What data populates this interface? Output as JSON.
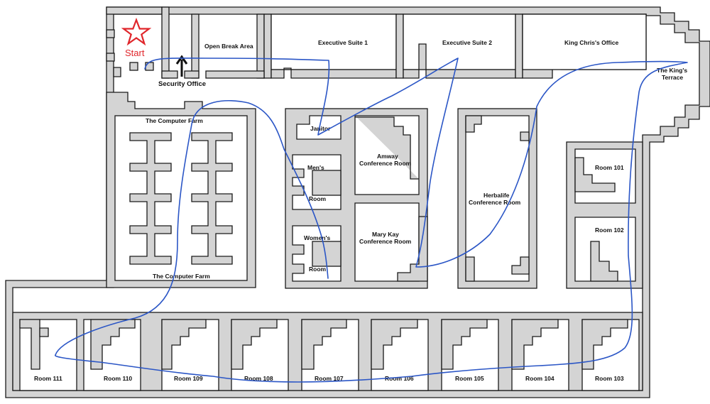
{
  "map": {
    "start_label": "Start",
    "security_office": "Security Office",
    "open_break_area": "Open Break Area",
    "executive_suite_1": "Executive Suite 1",
    "executive_suite_2": "Executive Suite 2",
    "king_chris_office": "King Chris's Office",
    "kings_terrace_line1": "The King's",
    "kings_terrace_line2": "Terrace",
    "computer_farm_top": "The Computer Farm",
    "computer_farm_bottom": "The Computer Farm",
    "janitor": "Janitor",
    "mens_line1": "Men's",
    "mens_line2": "Room",
    "womens_line1": "Women's",
    "womens_line2": "Room",
    "amway_line1": "Amway",
    "amway_line2": "Conference Room",
    "marykay_line1": "Mary Kay",
    "marykay_line2": "Conference Room",
    "herbalife_line1": "Herbalife",
    "herbalife_line2": "Conference Room",
    "room_101": "Room 101",
    "room_102": "Room 102",
    "room_103": "Room 103",
    "room_104": "Room 104",
    "room_105": "Room 105",
    "room_106": "Room 106",
    "room_107": "Room 107",
    "room_108": "Room 108",
    "room_109": "Room 109",
    "room_110": "Room 110",
    "room_111": "Room 111"
  },
  "colors": {
    "wall": "#d4d4d4",
    "route": "#2b56c6",
    "start_marker": "#e0262b"
  },
  "icons": [
    "star-icon",
    "up-arrow-icon"
  ]
}
